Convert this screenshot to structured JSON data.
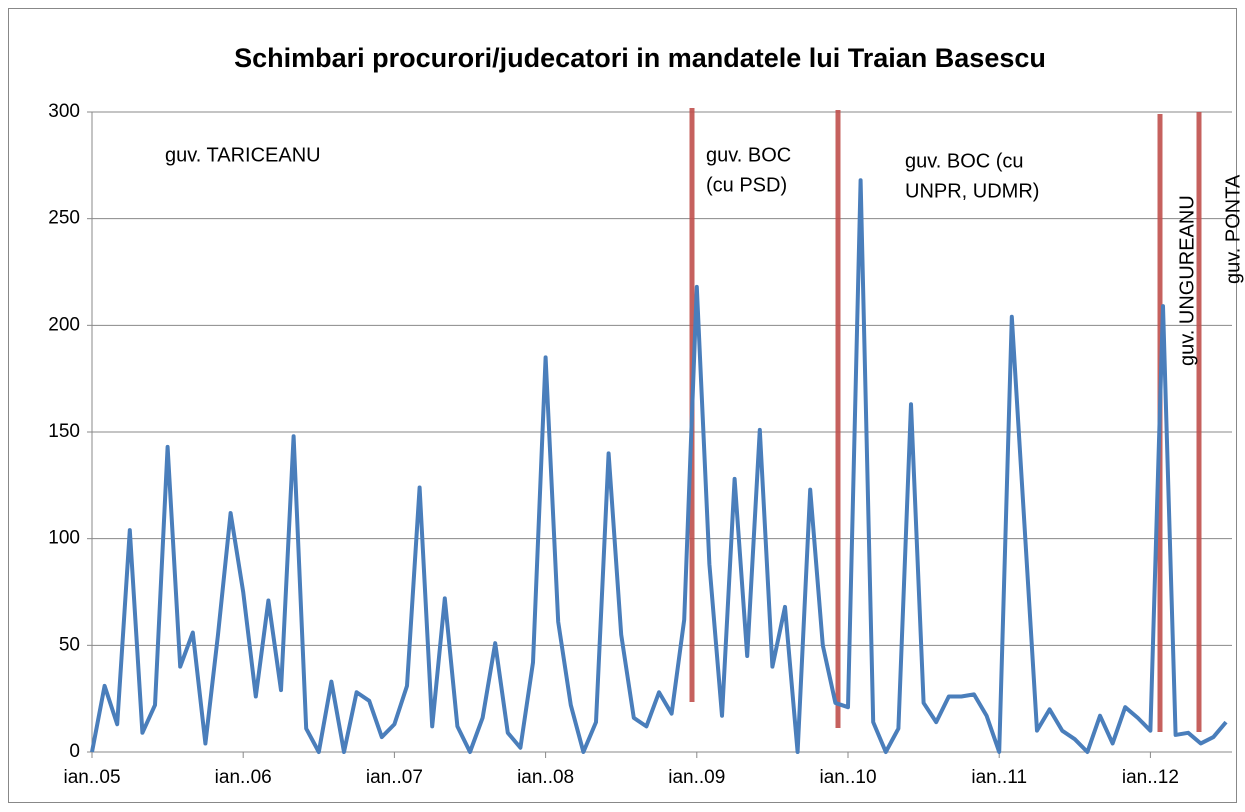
{
  "chart_data": {
    "type": "line",
    "title": "Schimbari procurori/judecatori in mandatele lui Traian Basescu",
    "categories": [
      "ian..05",
      null,
      null,
      null,
      null,
      null,
      null,
      null,
      null,
      null,
      null,
      null,
      "ian..06",
      null,
      null,
      null,
      null,
      null,
      null,
      null,
      null,
      null,
      null,
      null,
      "ian..07",
      null,
      null,
      null,
      null,
      null,
      null,
      null,
      null,
      null,
      null,
      null,
      "ian..08",
      null,
      null,
      null,
      null,
      null,
      null,
      null,
      null,
      null,
      null,
      null,
      "ian..09",
      null,
      null,
      null,
      null,
      null,
      null,
      null,
      null,
      null,
      null,
      null,
      "ian..10",
      null,
      null,
      null,
      null,
      null,
      null,
      null,
      null,
      null,
      null,
      null,
      "ian..11",
      null,
      null,
      null,
      null,
      null,
      null,
      null,
      null,
      null,
      null,
      null,
      "ian..12",
      null,
      null,
      null,
      null,
      null,
      null
    ],
    "values": [
      0,
      31,
      13,
      104,
      9,
      22,
      143,
      40,
      56,
      4,
      55,
      112,
      75,
      26,
      71,
      29,
      148,
      11,
      0,
      33,
      0,
      28,
      24,
      7,
      13,
      31,
      124,
      12,
      72,
      12,
      0,
      16,
      51,
      9,
      2,
      42,
      185,
      61,
      22,
      0,
      14,
      140,
      55,
      16,
      12,
      28,
      18,
      62,
      218,
      88,
      17,
      128,
      45,
      151,
      40,
      68,
      0,
      123,
      50,
      23,
      21,
      268,
      14,
      0,
      11,
      163,
      23,
      14,
      26,
      26,
      27,
      17,
      0,
      204,
      107,
      10,
      20,
      10,
      6,
      0,
      17,
      4,
      21,
      16,
      10,
      209,
      8,
      9,
      4,
      7,
      14
    ],
    "color": "#4a7ebb",
    "ylim": [
      0,
      300
    ],
    "yticks": [
      0,
      50,
      100,
      150,
      200,
      250,
      300
    ],
    "grid": true,
    "annotations": [
      [
        "guv. TARICEANU"
      ],
      [
        "guv. BOC",
        "(cu PSD)"
      ],
      [
        "guv. BOC (cu",
        "UNPR, UDMR)"
      ],
      [
        "guv. UNGUREANU"
      ],
      [
        "guv. PONTA"
      ]
    ]
  }
}
